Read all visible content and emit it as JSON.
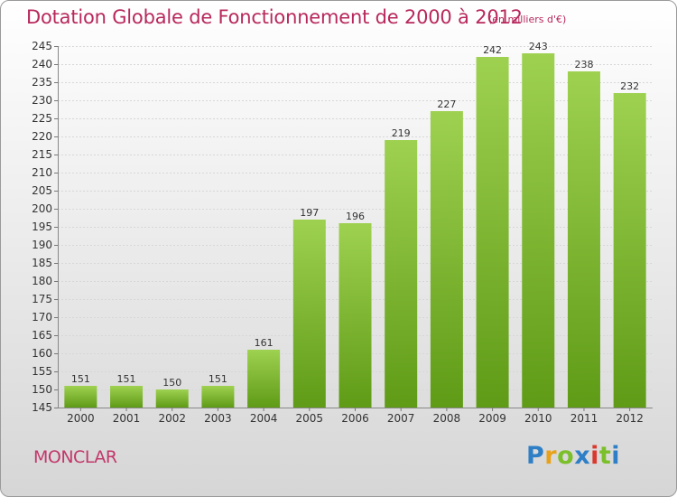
{
  "title": "Dotation Globale de Fonctionnement de 2000 à 2012",
  "unit": "(en milliers d'€)",
  "commune": "MONCLAR",
  "logo": {
    "text": "Proxiti",
    "colors": [
      "#2e7fc6",
      "#e8a21a",
      "#7bbf2a",
      "#2e7fc6",
      "#d9392e",
      "#7bbf2a"
    ]
  },
  "colors": {
    "bar_top": "#9ed150",
    "bar_bottom": "#5f9b16",
    "title": "#b8285c",
    "commune": "#c2386b"
  },
  "chart_data": {
    "type": "bar",
    "title": "Dotation Globale de Fonctionnement de 2000 à 2012",
    "xlabel": "",
    "ylabel": "",
    "categories": [
      "2000",
      "2001",
      "2002",
      "2003",
      "2004",
      "2005",
      "2006",
      "2007",
      "2008",
      "2009",
      "2010",
      "2011",
      "2012"
    ],
    "values": [
      151,
      151,
      150,
      151,
      161,
      197,
      196,
      219,
      227,
      242,
      243,
      238,
      232
    ],
    "ylim": [
      145,
      245
    ],
    "yticks": [
      145,
      150,
      155,
      160,
      165,
      170,
      175,
      180,
      185,
      190,
      195,
      200,
      205,
      210,
      215,
      220,
      225,
      230,
      235,
      240,
      245
    ],
    "grid": true,
    "data_labels": true
  }
}
